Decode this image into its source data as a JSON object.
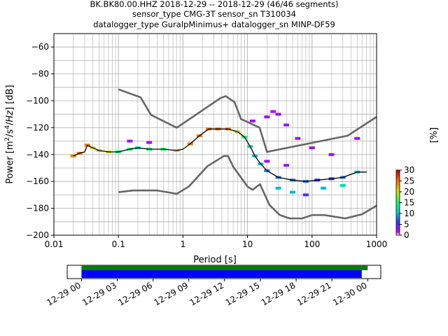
{
  "title_lines": [
    "BK.BK80.00.HHZ   2018-12-29 -- 2018-12-29  (46/46 segments)",
    "sensor_type CMG-3T sensor_sn T310034",
    "datalogger_type GuralpMinimus+ datalogger_sn MINP-DF59"
  ],
  "colors": {
    "model_lines": "#666666",
    "mode_line": "#000000",
    "cmap": [
      "#ffffff",
      "#cc00ff",
      "#3333ff",
      "#00cccc",
      "#00ff66",
      "#cccc00",
      "#ff6600",
      "#cc0000"
    ],
    "coverage_green": "#008000",
    "coverage_blue": "#0000ff"
  },
  "chart_data": [
    {
      "type": "heatmap",
      "title": "BK.BK80.00.HHZ   2018-12-29 -- 2018-12-29  (46/46 segments)",
      "xlabel": "Period [s]",
      "ylabel": "Power [m²/s⁴/Hz] [dB]",
      "xscale": "log",
      "xlim": [
        0.01,
        1000
      ],
      "ylim": [
        -200,
        -50
      ],
      "x_ticks": [
        0.01,
        0.1,
        1,
        10,
        100,
        1000
      ],
      "x_tick_labels": [
        "0.01",
        "0.1",
        "1",
        "10",
        "100",
        "1000"
      ],
      "y_ticks": [
        -200,
        -180,
        -160,
        -140,
        -120,
        -100,
        -80,
        -60
      ],
      "y_tick_labels": [
        "−200",
        "−180",
        "−160",
        "−140",
        "−120",
        "−100",
        "−80",
        "−60"
      ],
      "grid": true,
      "colorbar": {
        "label": "[%]",
        "range": [
          0,
          30
        ],
        "ticks": [
          0,
          5,
          10,
          15,
          20,
          25,
          30
        ]
      },
      "series": [
        {
          "role": "high_noise_model",
          "x": [
            0.1,
            0.22,
            0.32,
            0.8,
            3.8,
            4.6,
            6.3,
            7.9,
            15.4,
            20,
            354.8,
            1000
          ],
          "y": [
            -91.5,
            -97.4,
            -110.5,
            -120,
            -98,
            -96.5,
            -101,
            -113.5,
            -120,
            -138,
            -126,
            -112
          ]
        },
        {
          "role": "low_noise_model",
          "x": [
            0.1,
            0.17,
            0.4,
            0.8,
            1.24,
            2.4,
            4.3,
            5,
            6,
            10,
            12,
            15.6,
            21.9,
            31.6,
            45,
            70,
            101,
            154,
            328,
            600,
            1000
          ],
          "y": [
            -168,
            -166.7,
            -166.7,
            -169.2,
            -163.7,
            -148.6,
            -141.1,
            -141.1,
            -149,
            -163.8,
            -166.2,
            -162.1,
            -177.5,
            -185,
            -187.5,
            -187.5,
            -185,
            -185,
            -187.5,
            -184.4,
            -178
          ]
        },
        {
          "role": "mode",
          "x": [
            0.02,
            0.025,
            0.03,
            0.033,
            0.04,
            0.05,
            0.07,
            0.1,
            0.15,
            0.2,
            0.3,
            0.5,
            0.8,
            1.0,
            1.3,
            1.8,
            2.5,
            3.5,
            5,
            7,
            9,
            11,
            13,
            16,
            20,
            30,
            50,
            80,
            120,
            200,
            300,
            500,
            700
          ],
          "y": [
            -141,
            -139,
            -138,
            -133,
            -135,
            -137,
            -138,
            -138,
            -136,
            -135,
            -136,
            -136,
            -137,
            -136,
            -132,
            -126,
            -121,
            -121,
            -121,
            -123,
            -127,
            -134,
            -141,
            -147,
            -152,
            -157,
            -159,
            -160,
            -159,
            -158,
            -157,
            -153,
            -153
          ]
        }
      ],
      "percent_cells": [
        {
          "x": 0.02,
          "y": -141,
          "percent": 25
        },
        {
          "x": 0.025,
          "y": -139,
          "percent": 25
        },
        {
          "x": 0.033,
          "y": -133,
          "percent": 25
        },
        {
          "x": 0.04,
          "y": -135,
          "percent": 20
        },
        {
          "x": 0.05,
          "y": -137,
          "percent": 20
        },
        {
          "x": 0.07,
          "y": -138,
          "percent": 20
        },
        {
          "x": 0.1,
          "y": -138,
          "percent": 15
        },
        {
          "x": 0.15,
          "y": -136,
          "percent": 15
        },
        {
          "x": 0.2,
          "y": -135,
          "percent": 12
        },
        {
          "x": 0.3,
          "y": -136,
          "percent": 15
        },
        {
          "x": 0.5,
          "y": -136,
          "percent": 15
        },
        {
          "x": 0.8,
          "y": -137,
          "percent": 20
        },
        {
          "x": 1.3,
          "y": -132,
          "percent": 25
        },
        {
          "x": 1.8,
          "y": -126,
          "percent": 25
        },
        {
          "x": 2.5,
          "y": -121,
          "percent": 25
        },
        {
          "x": 3.5,
          "y": -121,
          "percent": 25
        },
        {
          "x": 5,
          "y": -121,
          "percent": 25
        },
        {
          "x": 7,
          "y": -123,
          "percent": 20
        },
        {
          "x": 9,
          "y": -127,
          "percent": 15
        },
        {
          "x": 11,
          "y": -134,
          "percent": 12
        },
        {
          "x": 13,
          "y": -141,
          "percent": 10
        },
        {
          "x": 16,
          "y": -147,
          "percent": 10
        },
        {
          "x": 20,
          "y": -152,
          "percent": 8
        },
        {
          "x": 30,
          "y": -157,
          "percent": 8
        },
        {
          "x": 50,
          "y": -159,
          "percent": 8
        },
        {
          "x": 80,
          "y": -160,
          "percent": 8
        },
        {
          "x": 120,
          "y": -159,
          "percent": 6
        },
        {
          "x": 200,
          "y": -158,
          "percent": 6
        },
        {
          "x": 300,
          "y": -157,
          "percent": 8
        },
        {
          "x": 500,
          "y": -153,
          "percent": 10
        },
        {
          "x": 12,
          "y": -115,
          "percent": 3
        },
        {
          "x": 20,
          "y": -112,
          "percent": 3
        },
        {
          "x": 25,
          "y": -108,
          "percent": 2
        },
        {
          "x": 30,
          "y": -110,
          "percent": 3
        },
        {
          "x": 40,
          "y": -118,
          "percent": 3
        },
        {
          "x": 60,
          "y": -128,
          "percent": 3
        },
        {
          "x": 100,
          "y": -135,
          "percent": 3
        },
        {
          "x": 200,
          "y": -140,
          "percent": 3
        },
        {
          "x": 500,
          "y": -128,
          "percent": 3
        },
        {
          "x": 30,
          "y": -165,
          "percent": 10
        },
        {
          "x": 50,
          "y": -168,
          "percent": 10
        },
        {
          "x": 80,
          "y": -170,
          "percent": 5
        },
        {
          "x": 150,
          "y": -165,
          "percent": 10
        },
        {
          "x": 300,
          "y": -163,
          "percent": 12
        },
        {
          "x": 20,
          "y": -145,
          "percent": 3
        },
        {
          "x": 40,
          "y": -148,
          "percent": 3
        },
        {
          "x": 0.15,
          "y": -130,
          "percent": 3
        },
        {
          "x": 0.3,
          "y": -131,
          "percent": 3
        }
      ]
    },
    {
      "type": "bar",
      "role": "data_coverage",
      "x_tick_labels": [
        "12-29 00",
        "12-29 03",
        "12-29 06",
        "12-29 09",
        "12-29 12",
        "12-29 15",
        "12-29 18",
        "12-29 21",
        "12-30 00"
      ],
      "x_hours": [
        0,
        3,
        6,
        9,
        12,
        15,
        18,
        21,
        24
      ],
      "xlim_hours": [
        -1.2,
        25.1
      ],
      "series": [
        {
          "role": "data_available",
          "color": "green",
          "start_hour": 0,
          "end_hour": 24
        },
        {
          "role": "psd_segments",
          "color": "blue",
          "start_hour": 0,
          "end_hour": 23.5
        }
      ]
    }
  ]
}
